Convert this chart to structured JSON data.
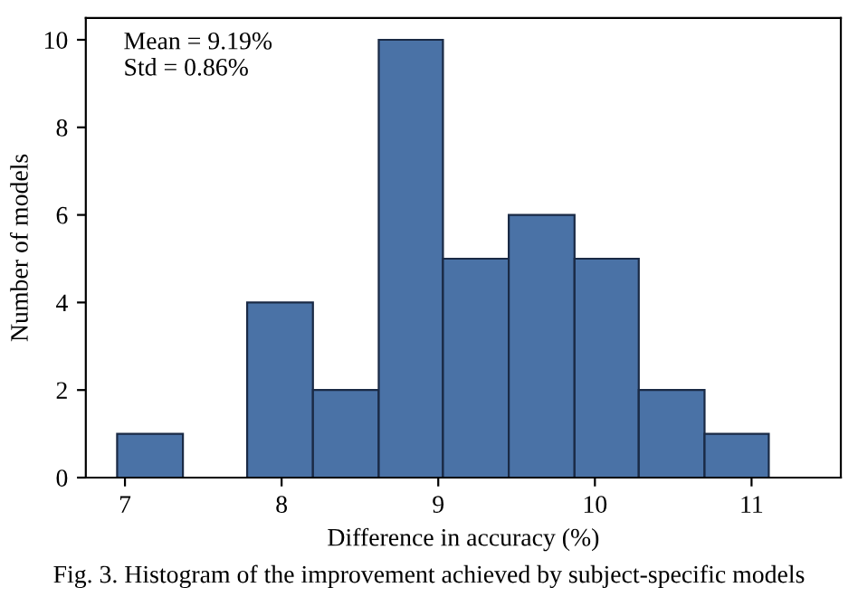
{
  "chart_data": {
    "type": "histogram",
    "xlabel": "Difference in accuracy (%)",
    "ylabel": "Number of models",
    "bins": [
      6.95,
      7.37,
      7.78,
      8.2,
      8.62,
      9.03,
      9.45,
      9.87,
      10.28,
      10.7,
      11.11
    ],
    "values": [
      1,
      0,
      4,
      2,
      10,
      5,
      6,
      5,
      2,
      1
    ],
    "color": "#4a72a6",
    "xlim": [
      6.75,
      11.57
    ],
    "ylim": [
      0,
      10.5
    ],
    "xticks": [
      7,
      8,
      9,
      10,
      11
    ],
    "yticks": [
      0,
      2,
      4,
      6,
      8,
      10
    ],
    "grid": false,
    "annotations": [
      "Mean = 9.19%\nStd = 0.86%",
      "Fig. 3. Histogram of the improvement achieved by subject-specific models"
    ]
  }
}
